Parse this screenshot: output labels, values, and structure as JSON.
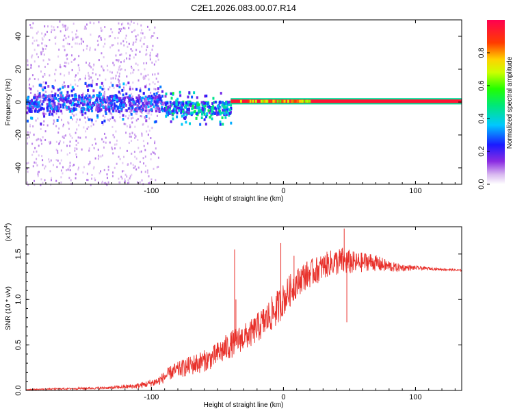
{
  "title": "C2E1.2026.083.00.07.R14",
  "chart_data": [
    {
      "type": "heatmap",
      "name": "spectrogram",
      "xlabel": "Height of straight line (km)",
      "ylabel": "Frequency (Hz)",
      "xlim": [
        -195,
        135
      ],
      "ylim": [
        -50,
        50
      ],
      "xticks": [
        -100,
        0,
        100
      ],
      "xtick_labels": [
        "-100",
        "0",
        "100"
      ],
      "yticks": [
        -40,
        -20,
        0,
        20,
        40
      ],
      "ytick_labels": [
        "-40",
        "-20",
        "0",
        "20",
        "40"
      ],
      "colorbar": {
        "label": "Normalized spectral amplitude",
        "range": [
          0,
          1
        ],
        "ticks": [
          0.0,
          0.2,
          0.4,
          0.6,
          0.8
        ],
        "tick_labels": [
          "0.0",
          "0.2",
          "0.4",
          "0.6",
          "0.8"
        ]
      },
      "band_segments": [
        {
          "x0": -195,
          "x1": -90,
          "center_hz": 0,
          "halfwidth_hz": 5,
          "amplitude": 0.3
        },
        {
          "x0": -90,
          "x1": -40,
          "center_hz": -3,
          "halfwidth_hz": 4,
          "amplitude": 0.45
        },
        {
          "x0": -40,
          "x1": 135,
          "center_hz": 0.5,
          "halfwidth_hz": 1.5,
          "amplitude": 0.95
        }
      ]
    },
    {
      "type": "line",
      "name": "snr",
      "xlabel": "Height of straight line (km)",
      "ylabel": "SNR (10 * v/v)",
      "yscale_label": "(x10",
      "yscale_exp": "4",
      "yscale_close": ")",
      "xlim": [
        -195,
        135
      ],
      "ylim": [
        0,
        1.8
      ],
      "xticks": [
        -100,
        0,
        100
      ],
      "xtick_labels": [
        "-100",
        "0",
        "100"
      ],
      "yticks": [
        0.0,
        0.5,
        1.0,
        1.5
      ],
      "ytick_labels": [
        "0.0",
        "0.5",
        "1.0",
        "1.5"
      ],
      "color": "#e8302a",
      "series": {
        "x": [
          -195,
          -160,
          -130,
          -110,
          -95,
          -85,
          -75,
          -65,
          -55,
          -45,
          -35,
          -25,
          -15,
          -5,
          0,
          5,
          10,
          15,
          25,
          35,
          45,
          55,
          65,
          75,
          85,
          95,
          110,
          135
        ],
        "mean": [
          0.01,
          0.02,
          0.03,
          0.05,
          0.1,
          0.2,
          0.25,
          0.3,
          0.35,
          0.45,
          0.55,
          0.62,
          0.75,
          0.9,
          1.0,
          1.1,
          1.18,
          1.25,
          1.32,
          1.4,
          1.42,
          1.4,
          1.42,
          1.38,
          1.35,
          1.35,
          1.34,
          1.32
        ],
        "noise": [
          0.005,
          0.01,
          0.015,
          0.03,
          0.05,
          0.08,
          0.1,
          0.12,
          0.12,
          0.15,
          0.15,
          0.15,
          0.18,
          0.2,
          0.18,
          0.18,
          0.16,
          0.16,
          0.15,
          0.14,
          0.16,
          0.12,
          0.1,
          0.08,
          0.05,
          0.03,
          0.015,
          0.01
        ]
      },
      "spikes": [
        {
          "x": -37,
          "y": 1.55
        },
        {
          "x": -36,
          "y": 1.0
        },
        {
          "x": -2,
          "y": 1.62
        },
        {
          "x": 8,
          "y": 1.48
        },
        {
          "x": 46,
          "y": 1.78
        },
        {
          "x": 48,
          "y": 0.75
        }
      ]
    }
  ]
}
